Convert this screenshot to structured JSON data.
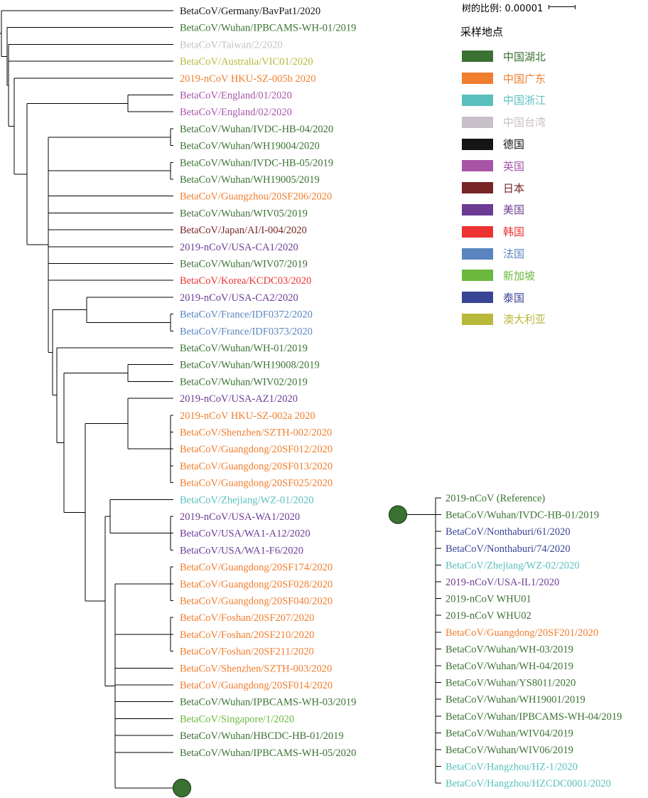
{
  "scale": {
    "label": "树的比例: 0.00001"
  },
  "legend": {
    "title": "采样地点",
    "items": [
      {
        "label": "中国湖北",
        "color": "#3a7232"
      },
      {
        "label": "中国广东",
        "color": "#f07e2e"
      },
      {
        "label": "中国浙江",
        "color": "#5abfbf"
      },
      {
        "label": "中国台湾",
        "color": "#c8c0c8"
      },
      {
        "label": "德国",
        "color": "#151515"
      },
      {
        "label": "英国",
        "color": "#a855a8"
      },
      {
        "label": "日本",
        "color": "#782424"
      },
      {
        "label": "美国",
        "color": "#6c3c94"
      },
      {
        "label": "韩国",
        "color": "#ec3232"
      },
      {
        "label": "法国",
        "color": "#5a84c0"
      },
      {
        "label": "新加坡",
        "color": "#6ab83c"
      },
      {
        "label": "泰国",
        "color": "#3a4494"
      },
      {
        "label": "澳大利亚",
        "color": "#b8b83a"
      }
    ]
  },
  "tree": {
    "colors": {
      "hubei": "#3a7232",
      "guangdong": "#f07e2e",
      "zhejiang": "#5abfbf",
      "taiwan": "#c8c0c8",
      "germany": "#151515",
      "uk": "#a855a8",
      "japan": "#782424",
      "usa": "#6c3c94",
      "korea": "#ec3232",
      "france": "#5a84c0",
      "singapore": "#6ab83c",
      "thailand": "#3a4494",
      "australia": "#b8b83a"
    },
    "main_leaves": [
      {
        "label": "BetaCoV/Germany/BavPat1/2020",
        "region": "germany"
      },
      {
        "label": "BetaCoV/Wuhan/IPBCAMS-WH-01/2019",
        "region": "hubei"
      },
      {
        "label": "BetaCoV/Taiwan/2/2020",
        "region": "taiwan"
      },
      {
        "label": "BetaCoV/Australia/VIC01/2020",
        "region": "australia"
      },
      {
        "label": "2019-nCoV HKU-SZ-005b 2020",
        "region": "guangdong"
      },
      {
        "label": "BetaCoV/England/01/2020",
        "region": "uk"
      },
      {
        "label": "BetaCoV/England/02/2020",
        "region": "uk"
      },
      {
        "label": "BetaCoV/Wuhan/IVDC-HB-04/2020",
        "region": "hubei"
      },
      {
        "label": "BetaCoV/Wuhan/WH19004/2020",
        "region": "hubei"
      },
      {
        "label": "BetaCoV/Wuhan/IVDC-HB-05/2019",
        "region": "hubei"
      },
      {
        "label": "BetaCoV/Wuhan/WH19005/2019",
        "region": "hubei"
      },
      {
        "label": "BetaCoV/Guangzhou/20SF206/2020",
        "region": "guangdong"
      },
      {
        "label": "BetaCoV/Wuhan/WIV05/2019",
        "region": "hubei"
      },
      {
        "label": "BetaCoV/Japan/AI/I-004/2020",
        "region": "japan"
      },
      {
        "label": "2019-nCoV/USA-CA1/2020",
        "region": "usa"
      },
      {
        "label": "BetaCoV/Wuhan/WIV07/2019",
        "region": "hubei"
      },
      {
        "label": "BetaCoV/Korea/KCDC03/2020",
        "region": "korea"
      },
      {
        "label": "2019-nCoV/USA-CA2/2020",
        "region": "usa"
      },
      {
        "label": "BetaCoV/France/IDF0372/2020",
        "region": "france"
      },
      {
        "label": "BetaCoV/France/IDF0373/2020",
        "region": "france"
      },
      {
        "label": "BetaCoV/Wuhan/WH-01/2019",
        "region": "hubei"
      },
      {
        "label": "BetaCoV/Wuhan/WH19008/2019",
        "region": "hubei"
      },
      {
        "label": "BetaCoV/Wuhan/WIV02/2019",
        "region": "hubei"
      },
      {
        "label": "2019-nCoV/USA-AZ1/2020",
        "region": "usa"
      },
      {
        "label": "2019-nCoV HKU-SZ-002a 2020",
        "region": "guangdong"
      },
      {
        "label": "BetaCoV/Shenzhen/SZTH-002/2020",
        "region": "guangdong"
      },
      {
        "label": "BetaCoV/Guangdong/20SF012/2020",
        "region": "guangdong"
      },
      {
        "label": "BetaCoV/Guangdong/20SF013/2020",
        "region": "guangdong"
      },
      {
        "label": "BetaCoV/Guangdong/20SF025/2020",
        "region": "guangdong"
      },
      {
        "label": "BetaCoV/Zhejiang/WZ-01/2020",
        "region": "zhejiang"
      },
      {
        "label": "2019-nCoV/USA-WA1/2020",
        "region": "usa"
      },
      {
        "label": "BetaCoV/USA/WA1-A12/2020",
        "region": "usa"
      },
      {
        "label": "BetaCoV/USA/WA1-F6/2020",
        "region": "usa"
      },
      {
        "label": "BetaCoV/Guangdong/20SF174/2020",
        "region": "guangdong"
      },
      {
        "label": "BetaCoV/Guangdong/20SF028/2020",
        "region": "guangdong"
      },
      {
        "label": "BetaCoV/Guangdong/20SF040/2020",
        "region": "guangdong"
      },
      {
        "label": "BetaCoV/Foshan/20SF207/2020",
        "region": "guangdong"
      },
      {
        "label": "BetaCoV/Foshan/20SF210/2020",
        "region": "guangdong"
      },
      {
        "label": "BetaCoV/Foshan/20SF211/2020",
        "region": "guangdong"
      },
      {
        "label": "BetaCoV/Shenzhen/SZTH-003/2020",
        "region": "guangdong"
      },
      {
        "label": "BetaCoV/Guangdong/20SF014/2020",
        "region": "guangdong"
      },
      {
        "label": "BetaCoV/Wuhan/IPBCAMS-WH-03/2019",
        "region": "hubei"
      },
      {
        "label": "BetaCoV/Singapore/1/2020",
        "region": "singapore"
      },
      {
        "label": "BetaCoV/Wuhan/HBCDC-HB-01/2019",
        "region": "hubei"
      },
      {
        "label": "BetaCoV/Wuhan/IPBCAMS-WH-05/2020",
        "region": "hubei"
      }
    ],
    "collapsed_leaves": [
      {
        "label": "2019-nCoV (Reference)",
        "region": "hubei"
      },
      {
        "label": "BetaCoV/Wuhan/IVDC-HB-01/2019",
        "region": "hubei"
      },
      {
        "label": "BetaCoV/Nonthaburi/61/2020",
        "region": "thailand"
      },
      {
        "label": "BetaCoV/Nonthaburi/74/2020",
        "region": "thailand"
      },
      {
        "label": "BetaCoV/Zhejiang/WZ-02/2020",
        "region": "zhejiang"
      },
      {
        "label": "2019-nCoV/USA-IL1/2020",
        "region": "usa"
      },
      {
        "label": "2019-nCoV WHU01",
        "region": "hubei"
      },
      {
        "label": "2019-nCoV WHU02",
        "region": "hubei"
      },
      {
        "label": "BetaCoV/Guangdong/20SF201/2020",
        "region": "guangdong"
      },
      {
        "label": "BetaCoV/Wuhan/WH-03/2019",
        "region": "hubei"
      },
      {
        "label": "BetaCoV/Wuhan/WH-04/2019",
        "region": "hubei"
      },
      {
        "label": "BetaCoV/Wuhan/YS8011/2020",
        "region": "hubei"
      },
      {
        "label": "BetaCoV/Wuhan/WH19001/2019",
        "region": "hubei"
      },
      {
        "label": "BetaCoV/Wuhan/IPBCAMS-WH-04/2019",
        "region": "hubei"
      },
      {
        "label": "BetaCoV/Wuhan/WIV04/2019",
        "region": "hubei"
      },
      {
        "label": "BetaCoV/Wuhan/WIV06/2019",
        "region": "hubei"
      },
      {
        "label": "BetaCoV/Hangzhou/HZ-1/2020",
        "region": "zhejiang"
      },
      {
        "label": "BetaCoV/Hangzhou/HZCDC0001/2020",
        "region": "zhejiang"
      }
    ]
  }
}
